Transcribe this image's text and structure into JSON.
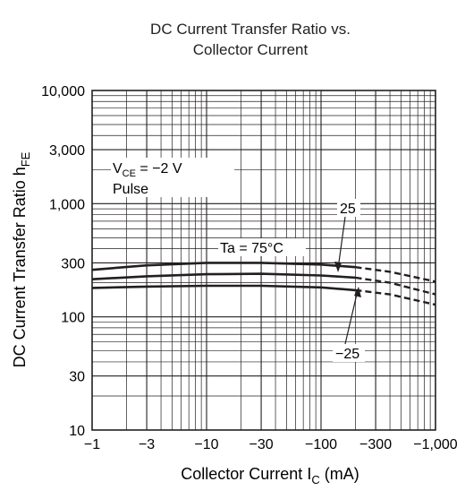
{
  "chart_data": {
    "type": "line",
    "title_line1": "DC Current Transfer Ratio vs.",
    "title_line2": "Collector Current",
    "xlabel": {
      "main": "Collector Current  I",
      "sub": "C",
      "unit": "  (mA)"
    },
    "ylabel": {
      "main": "DC Current Transfer Ratio  h",
      "sub": "FE"
    },
    "x_scale": "log",
    "y_scale": "log",
    "xlim": [
      -1,
      -1000
    ],
    "ylim": [
      10,
      10000
    ],
    "grid": true,
    "x_ticks": [
      {
        "value": -1,
        "label": "−1"
      },
      {
        "value": -3,
        "label": "−3"
      },
      {
        "value": -10,
        "label": "−10"
      },
      {
        "value": -30,
        "label": "−30"
      },
      {
        "value": -100,
        "label": "−100"
      },
      {
        "value": -300,
        "label": "−300"
      },
      {
        "value": -1000,
        "label": "−1,000"
      }
    ],
    "y_ticks": [
      {
        "value": 10,
        "label": "10"
      },
      {
        "value": 30,
        "label": "30"
      },
      {
        "value": 100,
        "label": "100"
      },
      {
        "value": 300,
        "label": "300"
      },
      {
        "value": 1000,
        "label": "1,000"
      },
      {
        "value": 3000,
        "label": "3,000"
      },
      {
        "value": 10000,
        "label": "10,000"
      }
    ],
    "conditions": {
      "vce_main": "V",
      "vce_sub": "CE",
      "vce_rest": " = −2 V",
      "pulse": "Pulse"
    },
    "series": [
      {
        "name": "75",
        "x": [
          -1,
          -3,
          -10,
          -30,
          -100,
          -200
        ],
        "y": [
          260,
          285,
          300,
          300,
          290,
          275
        ],
        "dashed_x": [
          -200,
          -400,
          -1000
        ],
        "dashed_y": [
          275,
          250,
          205
        ]
      },
      {
        "name": "25",
        "x": [
          -1,
          -3,
          -10,
          -30,
          -100,
          -200
        ],
        "y": [
          215,
          228,
          238,
          240,
          232,
          222
        ],
        "dashed_x": [
          -200,
          -400,
          -1000
        ],
        "dashed_y": [
          222,
          200,
          158
        ]
      },
      {
        "name": "-25",
        "x": [
          -1,
          -3,
          -10,
          -30,
          -100,
          -200
        ],
        "y": [
          180,
          185,
          188,
          188,
          182,
          172
        ],
        "dashed_x": [
          -200,
          -400,
          -1000
        ],
        "dashed_y": [
          172,
          158,
          128
        ]
      }
    ],
    "annotations": {
      "ta75": "Ta = 75°C",
      "t25": "25",
      "tm25": "−25"
    }
  }
}
